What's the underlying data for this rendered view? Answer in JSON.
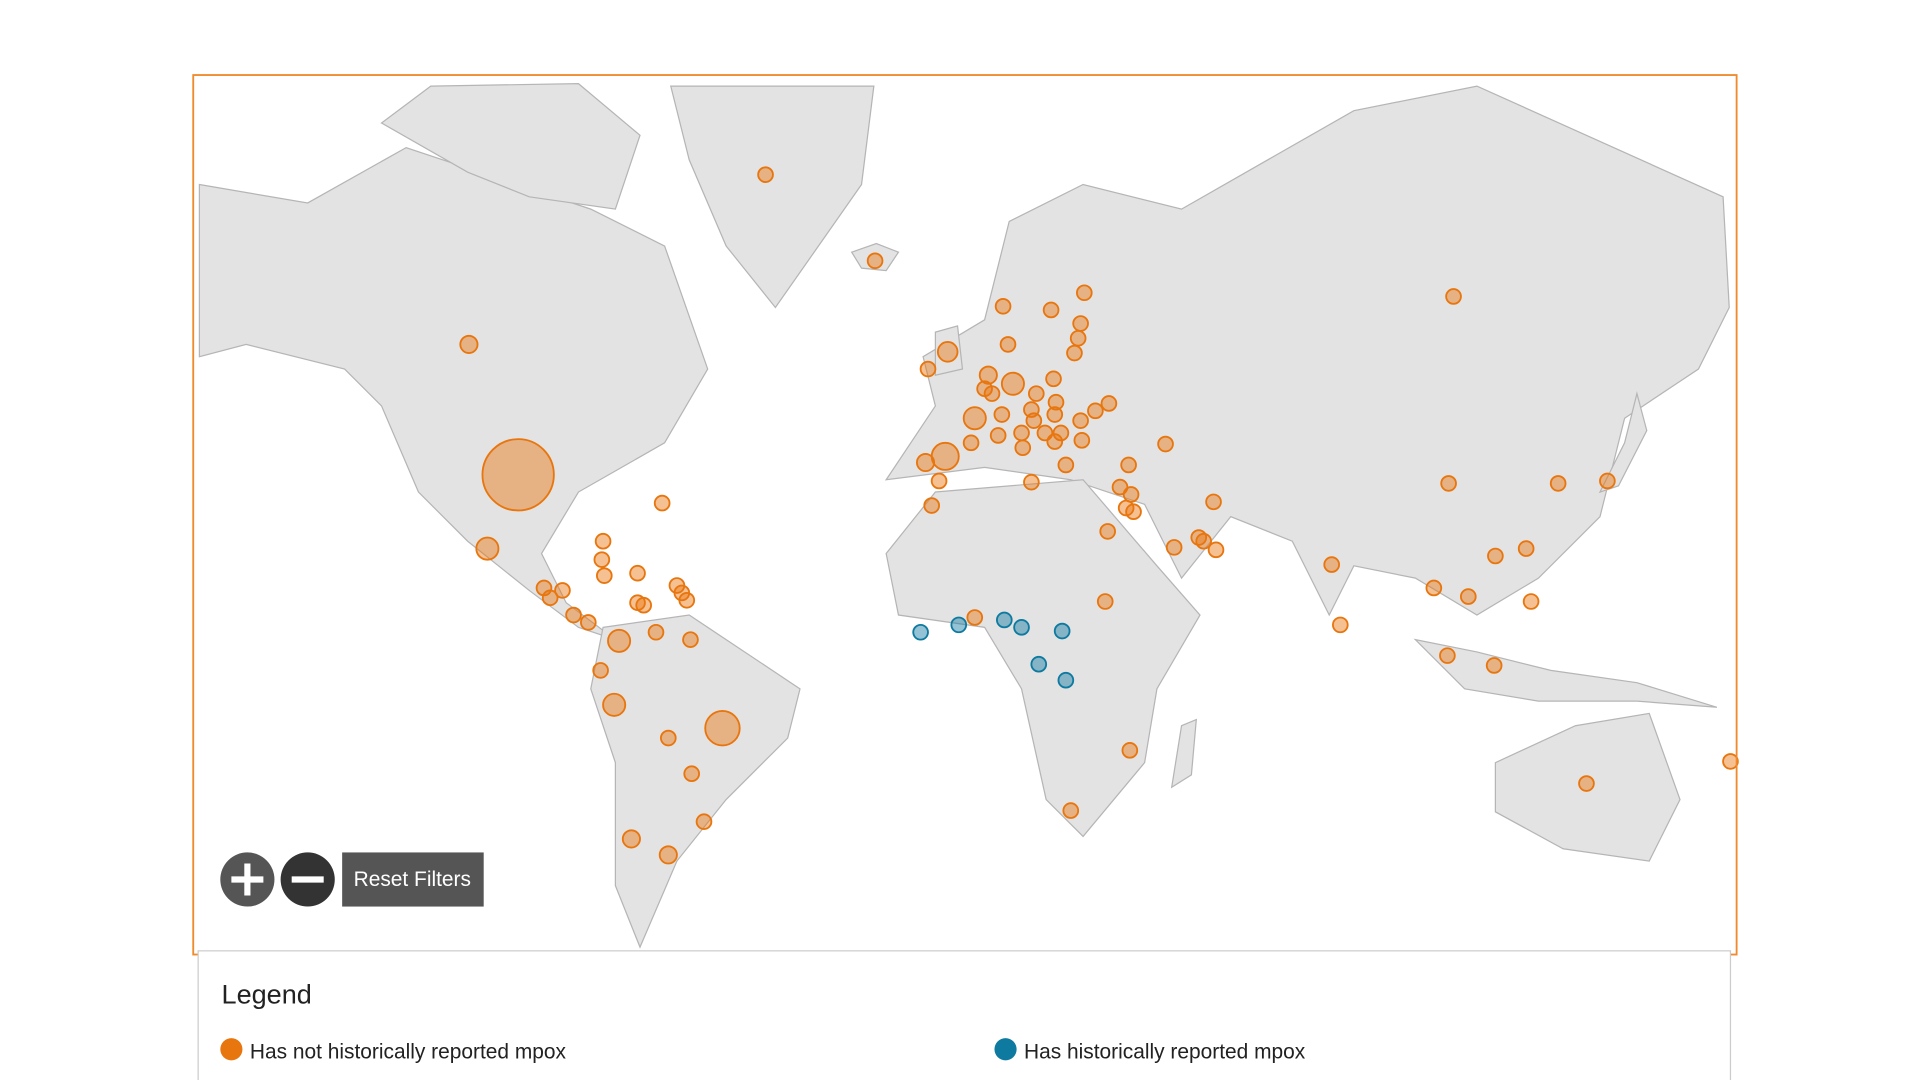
{
  "controls": {
    "reset": "Reset Filters"
  },
  "legend": {
    "title": "Legend",
    "items": [
      {
        "label": "Has not historically reported mpox",
        "color": "#e8760f"
      },
      {
        "label": "Has historically reported mpox",
        "color": "#0f7aa0"
      }
    ]
  }
}
